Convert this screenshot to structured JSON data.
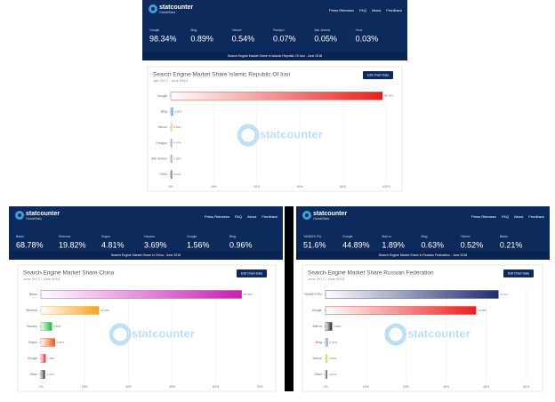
{
  "panels": [
    {
      "brand": "statcounter",
      "sub": "GlobalStats",
      "nav": [
        "Press Releases",
        "FAQ",
        "About",
        "Feedback"
      ],
      "stats": [
        {
          "name": "Google",
          "value": "98.34%"
        },
        {
          "name": "Bing",
          "value": "0.89%"
        },
        {
          "name": "Yahoo!",
          "value": "0.54%"
        },
        {
          "name": "Parsijoo",
          "value": "0.07%"
        },
        {
          "name": "Ask Jeeves",
          "value": "0.05%"
        },
        {
          "name": "Yooz",
          "value": "0.03%"
        }
      ],
      "caption": "Search Engine Market Share in Islamic Republic Of Iran - June 2018",
      "chart": {
        "type": "bar",
        "title": "Search Engine Market Share Islamic Republic Of Iran",
        "subtitle": "Jan 2017 - June 2018",
        "button": "Edit Chart Data",
        "watermark": "statcounter",
        "categories": [
          "Google",
          "Bing",
          "Yahoo!",
          "Parsijoo",
          "Ask Jeeves",
          "Other"
        ],
        "values": [
          98.34,
          0.89,
          0.54,
          0.07,
          0.05,
          0.11
        ],
        "value_labels": [
          "98.34%",
          "0.89%",
          "0.54%",
          "0.07%",
          "0.05%",
          "0.11%"
        ],
        "colors": [
          "#e8201e",
          "#3d7fc1",
          "#d8c23a",
          "#888888",
          "#888888",
          "#444444"
        ],
        "xlim": [
          0,
          100
        ],
        "xticks": [
          {
            "value": 0,
            "label": "0%"
          },
          {
            "value": 20,
            "label": "20%"
          },
          {
            "value": 40,
            "label": "40%"
          },
          {
            "value": 60,
            "label": "60%"
          },
          {
            "value": 80,
            "label": "80%"
          },
          {
            "value": 100,
            "label": "100%"
          }
        ]
      }
    },
    {
      "brand": "statcounter",
      "sub": "GlobalStats",
      "nav": [
        "Press Releases",
        "FAQ",
        "About",
        "Feedback"
      ],
      "stats": [
        {
          "name": "Baidu",
          "value": "68.78%"
        },
        {
          "name": "Shenma",
          "value": "19.82%"
        },
        {
          "name": "Sogou",
          "value": "4.81%"
        },
        {
          "name": "Haosou",
          "value": "3.69%"
        },
        {
          "name": "Google",
          "value": "1.56%"
        },
        {
          "name": "Bing",
          "value": "0.96%"
        }
      ],
      "caption": "Search Engine Market Share in China - June 2018",
      "chart": {
        "type": "bar",
        "title": "Search Engine Market Share China",
        "subtitle": "June 2017 - June 2018",
        "button": "Edit Chart Data",
        "watermark": "statcounter",
        "categories": [
          "Baidu",
          "Shenma",
          "Haosou",
          "Sogou",
          "Google",
          "Other"
        ],
        "values": [
          68.78,
          19.82,
          3.69,
          4.81,
          1.56,
          1.34
        ],
        "value_labels": [
          "68.78%",
          "19.82%",
          "3.69%",
          "4.81%",
          "1.56%",
          "1.34%"
        ],
        "colors": [
          "#c81fb5",
          "#f5a31c",
          "#1fb53a",
          "#f05a1e",
          "#e8201e",
          "#222222"
        ],
        "xlim": [
          0,
          75
        ],
        "xticks": [
          {
            "value": 0,
            "label": "0%"
          },
          {
            "value": 15,
            "label": "15%"
          },
          {
            "value": 30,
            "label": "30%"
          },
          {
            "value": 45,
            "label": "45%"
          },
          {
            "value": 60,
            "label": "60%"
          },
          {
            "value": 75,
            "label": "75%"
          }
        ]
      }
    },
    {
      "brand": "statcounter",
      "sub": "GlobalStats",
      "nav": [
        "Press Releases",
        "FAQ",
        "About",
        "Feedback"
      ],
      "stats": [
        {
          "name": "YANDEX RU",
          "value": "51.6%"
        },
        {
          "name": "Google",
          "value": "44.89%"
        },
        {
          "name": "Mail.ru",
          "value": "1.89%"
        },
        {
          "name": "Bing",
          "value": "0.63%"
        },
        {
          "name": "Yahoo!",
          "value": "0.52%"
        },
        {
          "name": "Baidu",
          "value": "0.21%"
        }
      ],
      "caption": "Search Engine Market Share in Russian Federation - June 2018",
      "chart": {
        "type": "bar",
        "title": "Search Engine Market Share Russian Federation",
        "subtitle": "June 2017 - June 2018",
        "button": "Edit Chart Data",
        "watermark": "statcounter",
        "categories": [
          "YANDEX RU",
          "Google",
          "Mail.ru",
          "Bing",
          "Yahoo!",
          "Other"
        ],
        "values": [
          51.6,
          44.89,
          1.89,
          0.63,
          0.52,
          0.47
        ],
        "value_labels": [
          "51.6%",
          "44.89%",
          "1.89%",
          "0.63%",
          "0.52%",
          "0.47%"
        ],
        "colors": [
          "#1e2f6e",
          "#e8201e",
          "#222222",
          "#3d8fd1",
          "#e0c020",
          "#444444"
        ],
        "xlim": [
          0,
          60
        ],
        "xticks": [
          {
            "value": 0,
            "label": "0%"
          },
          {
            "value": 12,
            "label": "12%"
          },
          {
            "value": 24,
            "label": "24%"
          },
          {
            "value": 36,
            "label": "36%"
          },
          {
            "value": 48,
            "label": "48%"
          },
          {
            "value": 60,
            "label": "60%"
          }
        ]
      }
    }
  ]
}
